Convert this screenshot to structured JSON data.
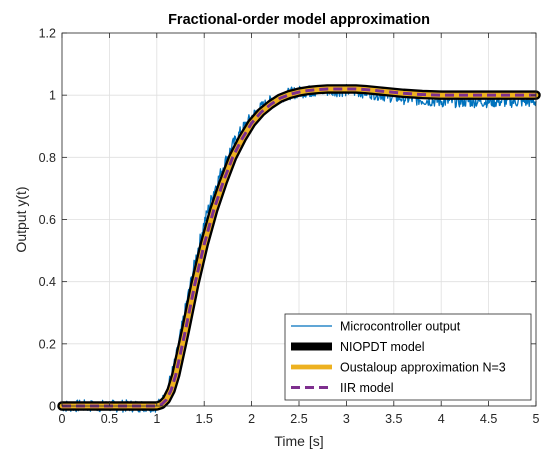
{
  "chart_data": {
    "type": "line",
    "title": "Fractional-order model approximation",
    "xlabel": "Time [s]",
    "ylabel": "Output y(t)",
    "xlim": [
      0,
      5
    ],
    "ylim": [
      0,
      1.2
    ],
    "grid": true,
    "legend_position": "bottom-right",
    "x_ticks": [
      {
        "value": 0,
        "label": "0"
      },
      {
        "value": 0.5,
        "label": "0.5"
      },
      {
        "value": 1,
        "label": "1"
      },
      {
        "value": 1.5,
        "label": "1.5"
      },
      {
        "value": 2,
        "label": "2"
      },
      {
        "value": 2.5,
        "label": "2.5"
      },
      {
        "value": 3,
        "label": "3"
      },
      {
        "value": 3.5,
        "label": "3.5"
      },
      {
        "value": 4,
        "label": "4"
      },
      {
        "value": 4.5,
        "label": "4.5"
      },
      {
        "value": 5,
        "label": "5"
      }
    ],
    "y_ticks": [
      {
        "value": 0,
        "label": "0"
      },
      {
        "value": 0.2,
        "label": "0.2"
      },
      {
        "value": 0.4,
        "label": "0.4"
      },
      {
        "value": 0.6,
        "label": "0.6"
      },
      {
        "value": 0.8,
        "label": "0.8"
      },
      {
        "value": 1,
        "label": "1"
      },
      {
        "value": 1.2,
        "label": "1.2"
      }
    ],
    "series": [
      {
        "name": "Microcontroller output",
        "color": "#0072BD",
        "style": "solid-thin-noisy",
        "noise_amplitude": 0.02,
        "x": [
          0,
          1.0,
          1.05,
          1.1,
          1.2,
          1.3,
          1.4,
          1.5,
          1.6,
          1.7,
          1.8,
          1.9,
          2.0,
          2.1,
          2.2,
          2.3,
          2.4,
          2.5,
          2.6,
          2.7,
          2.8,
          2.9,
          3.0,
          3.2,
          3.4,
          3.6,
          3.8,
          4.0,
          4.2,
          4.4,
          4.6,
          4.8,
          5.0
        ],
        "y": [
          0,
          0,
          0.01,
          0.04,
          0.15,
          0.31,
          0.46,
          0.59,
          0.69,
          0.77,
          0.84,
          0.89,
          0.93,
          0.96,
          0.98,
          0.995,
          1.005,
          1.01,
          1.012,
          1.014,
          1.015,
          1.015,
          1.015,
          1.01,
          1.0,
          0.99,
          0.985,
          0.98,
          0.98,
          0.98,
          0.98,
          0.98,
          0.98
        ]
      },
      {
        "name": "NIOPDT model",
        "color": "#000000",
        "style": "solid-thick",
        "x": [
          0,
          1.0,
          1.05,
          1.1,
          1.15,
          1.2,
          1.3,
          1.4,
          1.5,
          1.6,
          1.7,
          1.8,
          1.9,
          2.0,
          2.1,
          2.2,
          2.3,
          2.4,
          2.5,
          2.6,
          2.7,
          2.8,
          2.9,
          3.0,
          3.1,
          3.2,
          3.4,
          3.6,
          3.8,
          4.0,
          4.2,
          4.5,
          5.0
        ],
        "y": [
          0,
          0,
          0.005,
          0.02,
          0.05,
          0.1,
          0.24,
          0.39,
          0.52,
          0.63,
          0.72,
          0.8,
          0.86,
          0.91,
          0.945,
          0.97,
          0.99,
          1.002,
          1.01,
          1.015,
          1.018,
          1.02,
          1.02,
          1.02,
          1.02,
          1.018,
          1.012,
          1.006,
          1.002,
          1.0,
          1.0,
          1.0,
          1.0
        ]
      },
      {
        "name": "Oustaloup approximation N=3",
        "color": "#EDB120",
        "style": "solid-medium",
        "x": [
          0,
          1.0,
          1.05,
          1.1,
          1.15,
          1.2,
          1.3,
          1.4,
          1.5,
          1.6,
          1.7,
          1.8,
          1.9,
          2.0,
          2.1,
          2.2,
          2.3,
          2.4,
          2.5,
          2.6,
          2.7,
          2.8,
          2.9,
          3.0,
          3.1,
          3.2,
          3.4,
          3.6,
          3.8,
          4.0,
          4.2,
          4.5,
          5.0
        ],
        "y": [
          0,
          0,
          0.005,
          0.02,
          0.05,
          0.1,
          0.24,
          0.39,
          0.52,
          0.63,
          0.72,
          0.8,
          0.86,
          0.91,
          0.945,
          0.97,
          0.99,
          1.002,
          1.01,
          1.015,
          1.018,
          1.02,
          1.02,
          1.02,
          1.02,
          1.018,
          1.012,
          1.006,
          1.002,
          1.0,
          1.0,
          1.0,
          1.0
        ]
      },
      {
        "name": "IIR model",
        "color": "#7E2F8E",
        "style": "dashed",
        "x": [
          0,
          1.0,
          1.05,
          1.1,
          1.15,
          1.2,
          1.3,
          1.4,
          1.5,
          1.6,
          1.7,
          1.8,
          1.9,
          2.0,
          2.1,
          2.2,
          2.3,
          2.4,
          2.5,
          2.6,
          2.7,
          2.8,
          2.9,
          3.0,
          3.1,
          3.2,
          3.4,
          3.6,
          3.8,
          4.0,
          4.2,
          4.5,
          5.0
        ],
        "y": [
          0,
          0,
          0.005,
          0.02,
          0.05,
          0.1,
          0.24,
          0.39,
          0.52,
          0.63,
          0.72,
          0.8,
          0.86,
          0.91,
          0.945,
          0.97,
          0.99,
          1.002,
          1.01,
          1.015,
          1.018,
          1.02,
          1.02,
          1.02,
          1.02,
          1.018,
          1.012,
          1.006,
          1.002,
          1.0,
          1.0,
          1.0,
          1.0
        ]
      }
    ]
  }
}
